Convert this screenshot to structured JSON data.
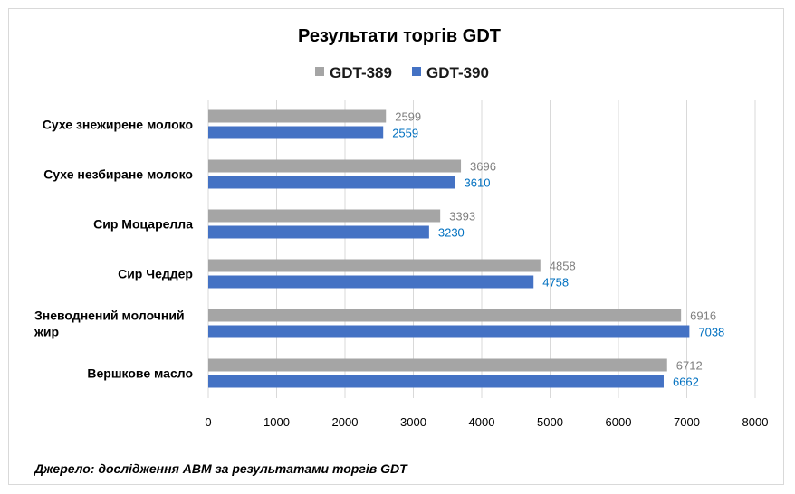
{
  "chart_data": {
    "type": "bar",
    "orientation": "horizontal",
    "title": "Результати торгів GDT",
    "categories": [
      "Сухе знежирене молоко",
      "Сухе незбиране молоко",
      "Сир Моцарелла",
      "Сир Чеддер",
      "Зневоднений молочний жир",
      "Вершкове масло"
    ],
    "series": [
      {
        "name": "GDT-389",
        "color": "#a5a5a5",
        "label_color": "#7f7f7f",
        "values": [
          2599,
          3696,
          3393,
          4858,
          6916,
          6712
        ]
      },
      {
        "name": "GDT-390",
        "color": "#4472c4",
        "label_color": "#0070c0",
        "values": [
          2559,
          3610,
          3230,
          4758,
          7038,
          6662
        ]
      }
    ],
    "xlim": [
      0,
      8000
    ],
    "xticks": [
      0,
      1000,
      2000,
      3000,
      4000,
      5000,
      6000,
      7000,
      8000
    ],
    "grid": true,
    "legend_position": "top"
  },
  "source_note": "Джерело: дослідження ABM за результатами торгів GDT"
}
